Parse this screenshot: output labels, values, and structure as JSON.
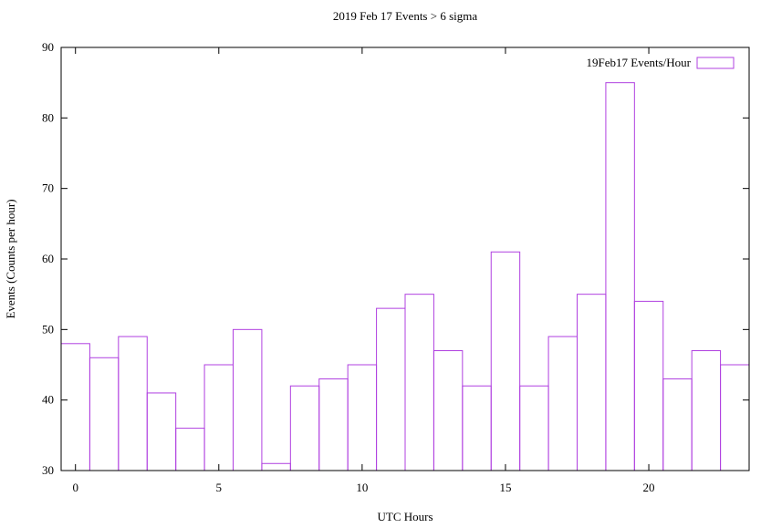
{
  "chart_data": {
    "type": "bar",
    "title": "2019 Feb 17 Events > 6 sigma",
    "xlabel": "UTC Hours",
    "ylabel": "Events (Counts per hour)",
    "legend": {
      "label": "19Feb17 Events/Hour",
      "position": "top-right"
    },
    "series": [
      {
        "name": "19Feb17 Events/Hour",
        "x": [
          0,
          1,
          2,
          3,
          4,
          5,
          6,
          7,
          8,
          9,
          10,
          11,
          12,
          13,
          14,
          15,
          16,
          17,
          18,
          19,
          20,
          21,
          22,
          23
        ],
        "values": [
          48,
          46,
          49,
          41,
          36,
          45,
          50,
          31,
          42,
          43,
          45,
          53,
          55,
          47,
          42,
          61,
          42,
          49,
          55,
          85,
          54,
          43,
          47,
          45
        ]
      }
    ],
    "xlim": [
      -0.5,
      23.5
    ],
    "ylim": [
      30,
      90
    ],
    "xticks": [
      "0",
      "5",
      "10",
      "15",
      "20"
    ],
    "yticks": [
      "30",
      "40",
      "50",
      "60",
      "70",
      "80",
      "90"
    ],
    "bar_color": "#b040e0",
    "grid": false
  }
}
